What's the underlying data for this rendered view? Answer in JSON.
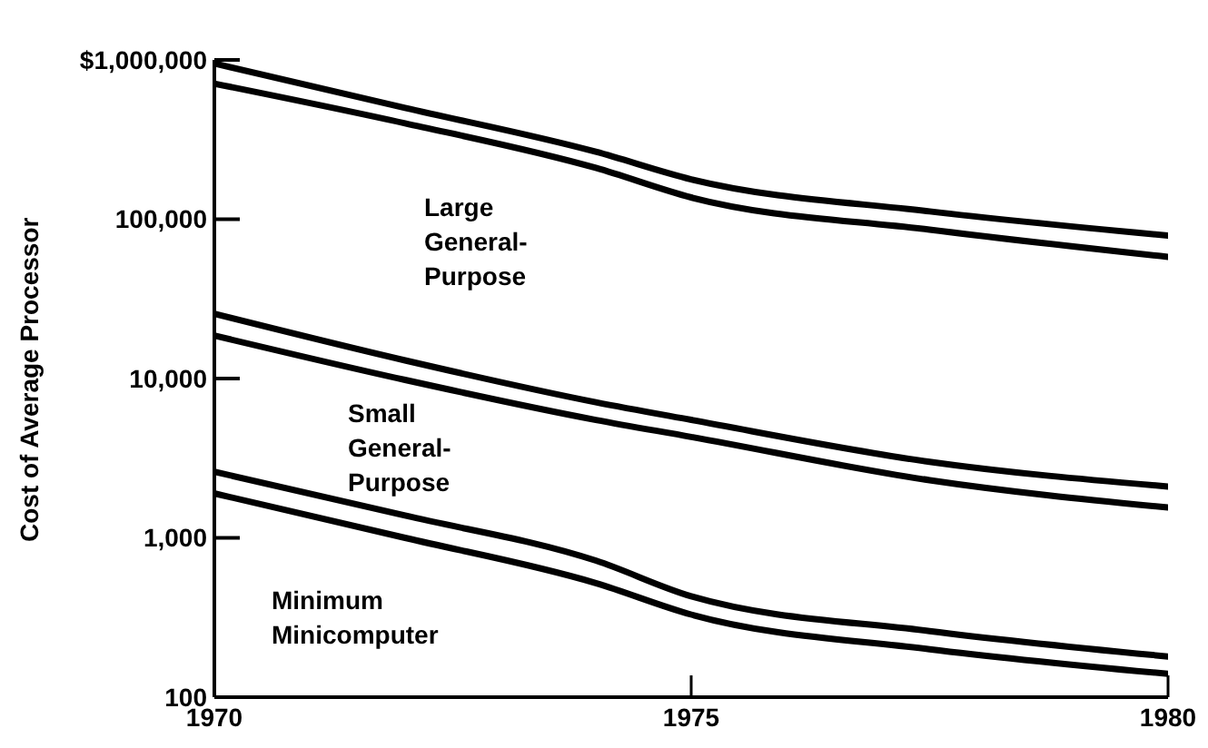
{
  "chart_data": {
    "type": "line",
    "ylabel": "Cost of Average Processor",
    "x": [
      1970,
      1972,
      1974,
      1975,
      1977.5,
      1980
    ],
    "series": [
      {
        "color": "#000000",
        "values": [
          950000,
          500000,
          265000,
          178000,
          112000,
          79000
        ]
      },
      {
        "color": "#000000",
        "values": [
          710000,
          400000,
          210000,
          137000,
          86000,
          58000
        ]
      },
      {
        "color": "#000000",
        "values": [
          25500,
          13000,
          7100,
          5500,
          3000,
          2100
        ]
      },
      {
        "color": "#000000",
        "values": [
          18600,
          9800,
          5500,
          4300,
          2300,
          1550
        ]
      },
      {
        "color": "#000000",
        "values": [
          2600,
          1380,
          720,
          430,
          260,
          180
        ]
      },
      {
        "color": "#000000",
        "values": [
          1900,
          1000,
          520,
          330,
          200,
          140
        ]
      }
    ],
    "xlim": [
      1970,
      1980
    ],
    "xticks": [
      1970,
      1975,
      1980
    ],
    "ylim": [
      100,
      1000000
    ],
    "log": true,
    "yticks": [
      100,
      {
        "value": 1000,
        "label": "1,000"
      },
      {
        "value": 10000,
        "label": "10,000"
      },
      {
        "value": 100000,
        "label": "100,000"
      },
      {
        "value": 1000000,
        "label": "$1,000,000"
      }
    ],
    "annotations": [
      "Large General-Purpose",
      "Small General-Purpose",
      "Minimum Minicomputer"
    ],
    "grid": false,
    "legend": false,
    "marker": "none",
    "line_style": "solid"
  }
}
